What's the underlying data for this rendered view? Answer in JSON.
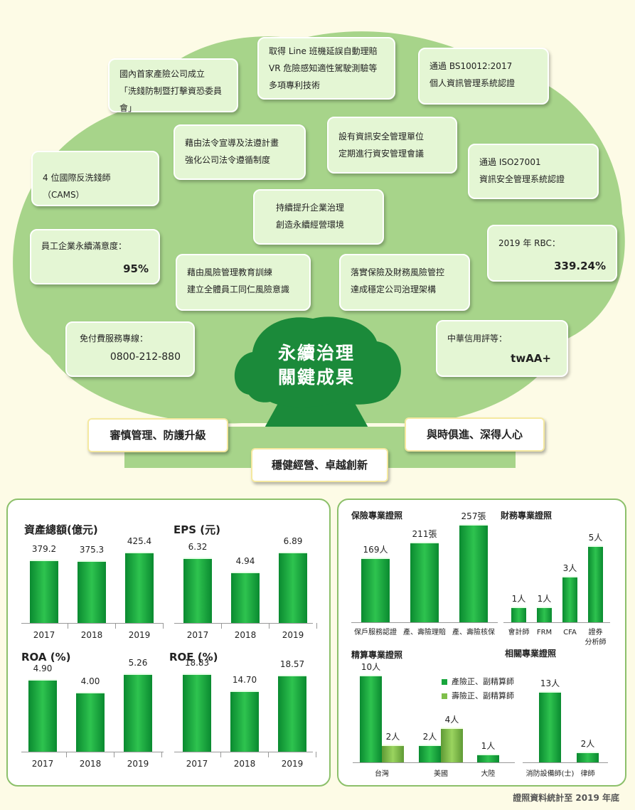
{
  "tree": {
    "cards": {
      "c1": [
        "國內首家產險公司成立",
        "「洗錢防制暨打擊資恐委員會」"
      ],
      "c2": [
        "取得 Line 班機延誤自動理賠",
        "VR 危險感知適性駕駛測驗等",
        "多項專利技術"
      ],
      "c3": [
        "通過  BS10012:2017",
        "個人資訊管理系統認證"
      ],
      "c4": [
        "藉由法令宣導及法遵計畫",
        "強化公司法令遵循制度"
      ],
      "c5": [
        "設有資訊安全管理單位",
        "定期進行資安管理會議"
      ],
      "c6": [
        "4 位國際反洗錢師（CAMS）"
      ],
      "c7": [
        "通過  ISO27001",
        "資訊安全管理系統認證"
      ],
      "c8": [
        "持續提升企業治理",
        "創造永續經營環境"
      ],
      "c9_label": "員工企業永續滿意度：",
      "c9_value": "95%",
      "c10": [
        "藉由風險管理教育訓練",
        "建立全體員工同仁風險意識"
      ],
      "c11": [
        "落實保險及財務風險管控",
        "達成穩定公司治理架構"
      ],
      "c12_label": "2019 年 RBC：",
      "c12_value": "339.24%",
      "c13_label": "免付費服務專線：",
      "c13_value": "0800-212-880",
      "c14_label": "中華信用評等：",
      "c14_value": "twAA+"
    },
    "center": [
      "永續治理",
      "關鍵成果"
    ],
    "slogans": [
      "審慎管理、防護升級",
      "穩健經營、卓越創新",
      "與時俱進、深得人心"
    ]
  },
  "chart_data": [
    {
      "type": "bar",
      "title": "資產總額(億元)",
      "categories": [
        "2017",
        "2018",
        "2019"
      ],
      "values": [
        379.2,
        375.3,
        425.4
      ],
      "labels": [
        "379.2",
        "375.3",
        "425.4"
      ]
    },
    {
      "type": "bar",
      "title": "EPS (元)",
      "categories": [
        "2017",
        "2018",
        "2019"
      ],
      "values": [
        6.32,
        4.94,
        6.89
      ],
      "labels": [
        "6.32",
        "4.94",
        "6.89"
      ]
    },
    {
      "type": "bar",
      "title": "ROA (%)",
      "categories": [
        "2017",
        "2018",
        "2019"
      ],
      "values": [
        4.9,
        4.0,
        5.26
      ],
      "labels": [
        "4.90",
        "4.00",
        "5.26"
      ]
    },
    {
      "type": "bar",
      "title": "ROE (%)",
      "categories": [
        "2017",
        "2018",
        "2019"
      ],
      "values": [
        18.83,
        14.7,
        18.57
      ],
      "labels": [
        "18.83",
        "14.70",
        "18.57"
      ]
    },
    {
      "type": "bar",
      "title": "保險專業證照",
      "categories": [
        "保戶服務認證",
        "產、壽險理賠",
        "產、壽險核保"
      ],
      "values": [
        169,
        211,
        257
      ],
      "labels": [
        "169人",
        "211張",
        "257張"
      ]
    },
    {
      "type": "bar",
      "title": "財務專業證照",
      "categories": [
        "會計師",
        "FRM",
        "CFA",
        "證券分析師"
      ],
      "values": [
        1,
        1,
        3,
        5
      ],
      "labels": [
        "1人",
        "1人",
        "3人",
        "5人"
      ]
    },
    {
      "type": "bar",
      "title": "精算專業證照",
      "categories": [
        "台灣",
        "美國",
        "大陸"
      ],
      "series": [
        {
          "name": "產險正、副精算師",
          "values": [
            10,
            2,
            1
          ],
          "labels": [
            "10人",
            "2人",
            "1人"
          ]
        },
        {
          "name": "壽險正、副精算師",
          "values": [
            2,
            4,
            null
          ],
          "labels": [
            "2人",
            "4人",
            ""
          ]
        }
      ]
    },
    {
      "type": "bar",
      "title": "相關專業證照",
      "categories": [
        "消防設備師(士)",
        "律師"
      ],
      "values": [
        13,
        2
      ],
      "labels": [
        "13人",
        "2人"
      ]
    }
  ],
  "footer": "證照資料統計至 2019 年底",
  "colors": {
    "bar_green": "#18a63c",
    "bar_light": "#7fbf4b",
    "panel_border": "#8cc06a",
    "tree_green": "#1b8a3a"
  }
}
